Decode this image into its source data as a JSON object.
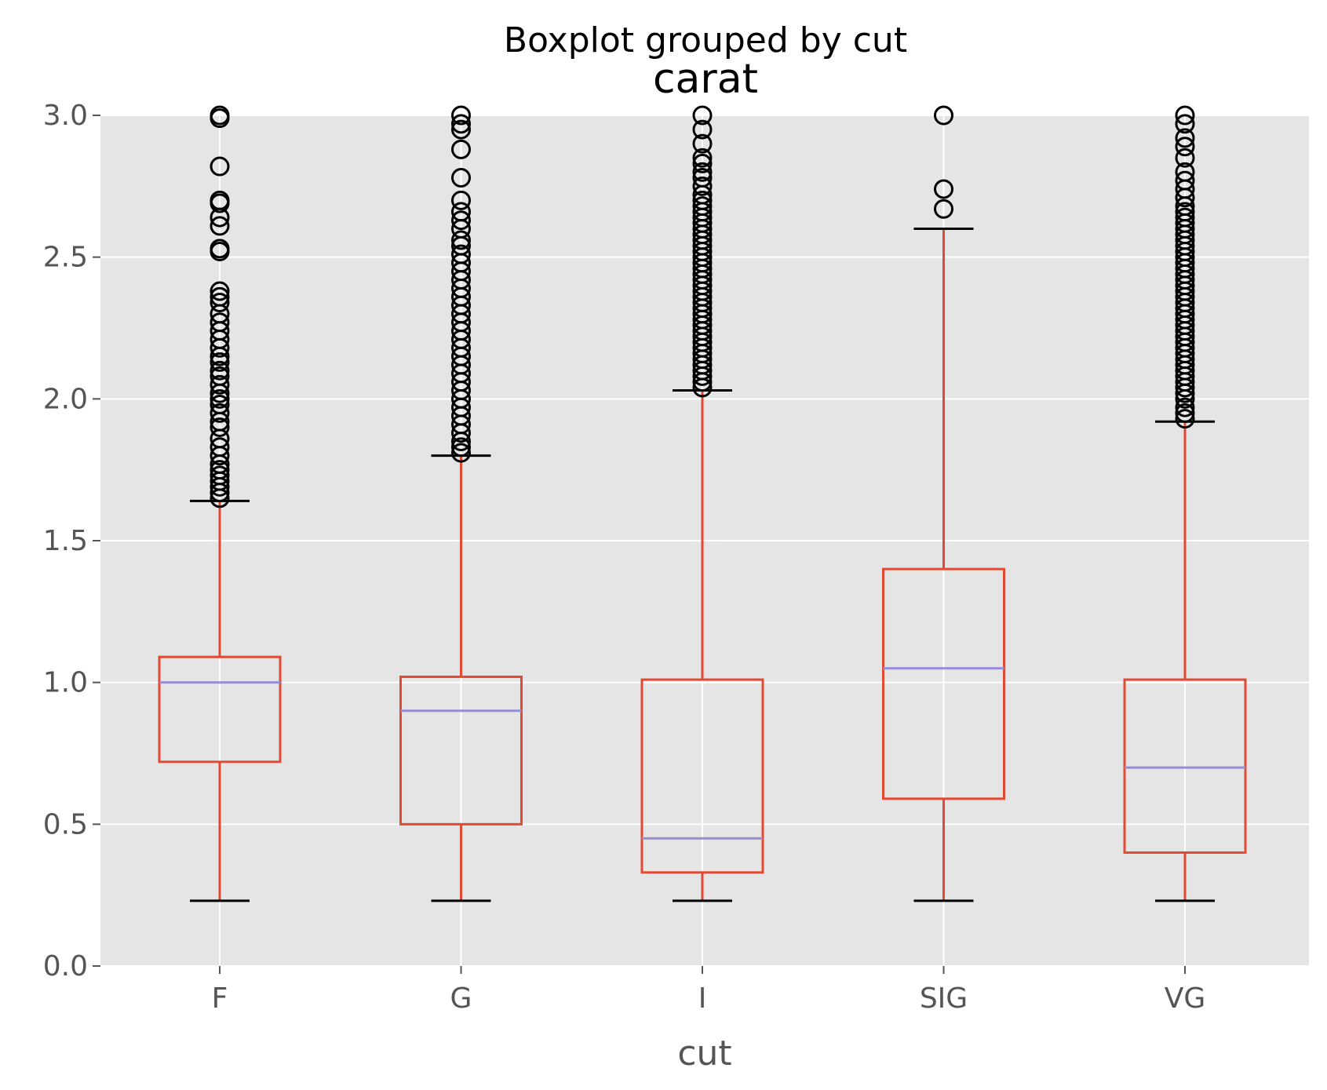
{
  "chart_data": {
    "type": "boxplot",
    "suptitle": "Boxplot grouped by cut",
    "title": "carat",
    "xlabel": "cut",
    "ylabel": "",
    "ylim": [
      0,
      3.0
    ],
    "y_ticks": [
      "0.0",
      "0.5",
      "1.0",
      "1.5",
      "2.0",
      "2.5",
      "3.0"
    ],
    "y_tick_values": [
      0,
      0.5,
      1.0,
      1.5,
      2.0,
      2.5,
      3.0
    ],
    "grid": true,
    "colors": {
      "background": "#e5e5e5",
      "grid": "#ffffff",
      "box": "#e24a33",
      "median": "#988ed5",
      "cap": "#000000",
      "flier": "#000000"
    },
    "categories": [
      "F",
      "G",
      "I",
      "SIG",
      "VG"
    ],
    "boxes": [
      {
        "category": "F",
        "whisker_low": 0.23,
        "q1": 0.72,
        "median": 1.0,
        "q3": 1.09,
        "whisker_high": 1.64,
        "outliers": [
          1.65,
          1.67,
          1.69,
          1.71,
          1.73,
          1.75,
          1.77,
          1.8,
          1.83,
          1.86,
          1.9,
          1.92,
          1.95,
          1.98,
          2.0,
          2.02,
          2.05,
          2.08,
          2.1,
          2.13,
          2.15,
          2.18,
          2.21,
          2.24,
          2.27,
          2.3,
          2.34,
          2.36,
          2.38,
          2.52,
          2.53,
          2.61,
          2.64,
          2.69,
          2.7,
          2.82,
          2.99,
          3.0
        ]
      },
      {
        "category": "G",
        "whisker_low": 0.23,
        "q1": 0.5,
        "median": 0.9,
        "q3": 1.02,
        "whisker_high": 1.8,
        "outliers": [
          1.81,
          1.83,
          1.85,
          1.88,
          1.91,
          1.94,
          1.97,
          2.0,
          2.03,
          2.06,
          2.09,
          2.12,
          2.15,
          2.18,
          2.21,
          2.24,
          2.27,
          2.3,
          2.33,
          2.36,
          2.39,
          2.42,
          2.45,
          2.48,
          2.51,
          2.54,
          2.56,
          2.6,
          2.63,
          2.66,
          2.7,
          2.78,
          2.88,
          2.95,
          2.97,
          3.0
        ]
      },
      {
        "category": "I",
        "whisker_low": 0.23,
        "q1": 0.33,
        "median": 0.45,
        "q3": 1.01,
        "whisker_high": 2.03,
        "outliers": [
          2.04,
          2.06,
          2.08,
          2.1,
          2.12,
          2.14,
          2.16,
          2.18,
          2.2,
          2.22,
          2.24,
          2.26,
          2.28,
          2.3,
          2.32,
          2.34,
          2.36,
          2.38,
          2.4,
          2.42,
          2.44,
          2.46,
          2.48,
          2.5,
          2.52,
          2.54,
          2.56,
          2.58,
          2.6,
          2.62,
          2.64,
          2.66,
          2.68,
          2.7,
          2.72,
          2.75,
          2.78,
          2.8,
          2.83,
          2.85,
          2.9,
          2.95,
          3.0
        ]
      },
      {
        "category": "SIG",
        "whisker_low": 0.23,
        "q1": 0.59,
        "median": 1.05,
        "q3": 1.4,
        "whisker_high": 2.6,
        "outliers": [
          2.67,
          2.74,
          3.0
        ]
      },
      {
        "category": "VG",
        "whisker_low": 0.23,
        "q1": 0.4,
        "median": 0.7,
        "q3": 1.01,
        "whisker_high": 1.92,
        "outliers": [
          1.93,
          1.95,
          1.97,
          2.0,
          2.02,
          2.04,
          2.06,
          2.08,
          2.1,
          2.12,
          2.14,
          2.16,
          2.18,
          2.2,
          2.22,
          2.24,
          2.26,
          2.28,
          2.3,
          2.32,
          2.34,
          2.36,
          2.38,
          2.4,
          2.42,
          2.44,
          2.46,
          2.48,
          2.5,
          2.52,
          2.54,
          2.56,
          2.58,
          2.6,
          2.62,
          2.64,
          2.66,
          2.68,
          2.71,
          2.74,
          2.77,
          2.8,
          2.85,
          2.89,
          2.92,
          2.97,
          3.0
        ]
      }
    ]
  }
}
